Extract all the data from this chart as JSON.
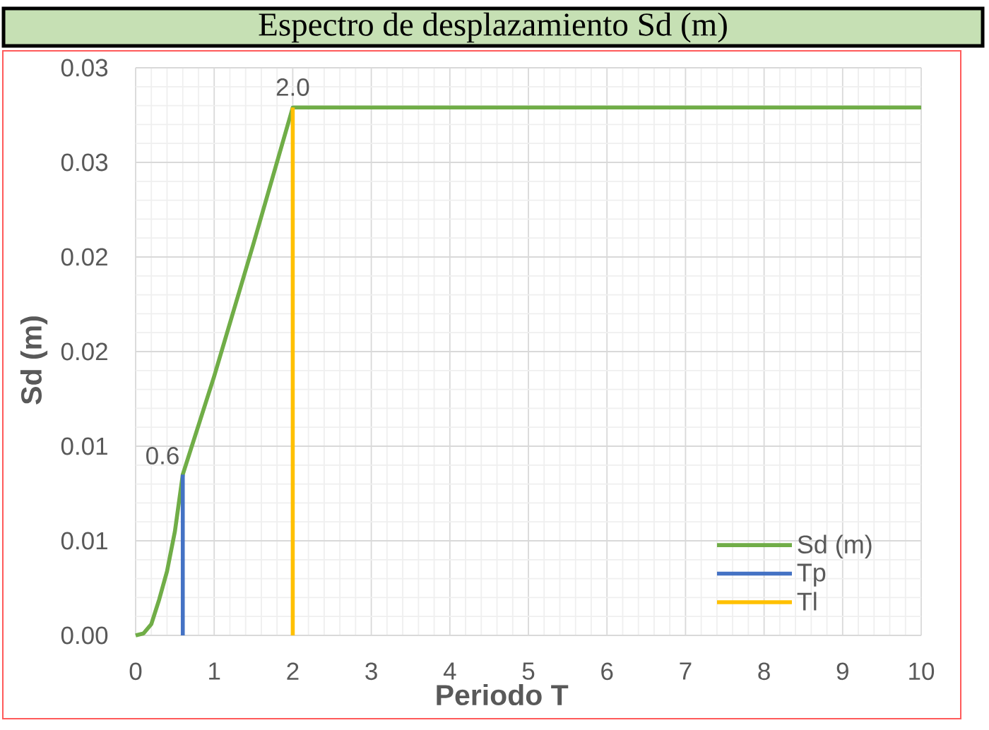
{
  "chart_data": {
    "type": "line",
    "title": "Espectro de desplazamiento Sd (m)",
    "xlabel": "Periodo T",
    "ylabel": "Sd (m)",
    "series": [
      {
        "name": "Sd (m)",
        "color": "#70ad47",
        "x": [
          0,
          0.1,
          0.2,
          0.3,
          0.4,
          0.5,
          0.6,
          1.0,
          1.5,
          2.0,
          10
        ],
        "values": [
          0,
          0.0001,
          0.0006,
          0.0019,
          0.0034,
          0.0055,
          0.0085,
          0.0137,
          0.0207,
          0.0279,
          0.0279
        ]
      },
      {
        "name": "Tp",
        "color": "#4472c4",
        "x": [
          0.6,
          0.6
        ],
        "values": [
          0,
          0.0085
        ]
      },
      {
        "name": "Tl",
        "color": "#ffc000",
        "x": [
          2.0,
          2.0
        ],
        "values": [
          0,
          0.0279
        ]
      }
    ],
    "xlim": [
      0,
      10
    ],
    "ylim": [
      0,
      0.03
    ],
    "xticks": [
      0,
      1,
      2,
      3,
      4,
      5,
      6,
      7,
      8,
      9,
      10
    ],
    "yticks": [
      {
        "value": 0,
        "label": "0.00"
      },
      {
        "value": 0.005,
        "label": "0.01"
      },
      {
        "value": 0.01,
        "label": "0.01"
      },
      {
        "value": 0.015,
        "label": "0.02"
      },
      {
        "value": 0.02,
        "label": "0.02"
      },
      {
        "value": 0.025,
        "label": "0.03"
      },
      {
        "value": 0.03,
        "label": "0.03"
      }
    ],
    "grid": true,
    "legend": "bottom right",
    "marker": "none",
    "line_style": "solid",
    "annotations": [
      {
        "text": "0.6",
        "x": 0.6,
        "y": 0.0085
      },
      {
        "text": "2.0",
        "x": 2.0,
        "y": 0.0279
      }
    ]
  }
}
